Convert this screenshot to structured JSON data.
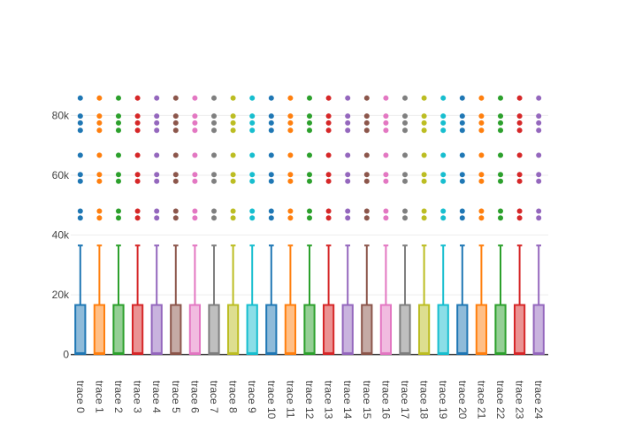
{
  "chart_data": {
    "type": "box",
    "title": "",
    "xlabel": "",
    "ylabel": "",
    "ylim": [
      -1000,
      89000
    ],
    "y_ticks": [
      0,
      20000,
      40000,
      60000,
      80000
    ],
    "y_tick_labels": [
      "0",
      "20k",
      "40k",
      "60k",
      "80k"
    ],
    "grid": true,
    "legend": "none",
    "categories": [
      "trace 0",
      "trace 1",
      "trace 2",
      "trace 3",
      "trace 4",
      "trace 5",
      "trace 6",
      "trace 7",
      "trace 8",
      "trace 9",
      "trace 10",
      "trace 11",
      "trace 12",
      "trace 13",
      "trace 14",
      "trace 15",
      "trace 16",
      "trace 17",
      "trace 18",
      "trace 19",
      "trace 20",
      "trace 21",
      "trace 22",
      "trace 23",
      "trace 24"
    ],
    "colors": [
      "#1f77b4",
      "#ff7f0e",
      "#2ca02c",
      "#d62728",
      "#9467bd",
      "#8c564b",
      "#e377c2",
      "#7f7f7f",
      "#bcbd22",
      "#17becf",
      "#1f77b4",
      "#ff7f0e",
      "#2ca02c",
      "#d62728",
      "#9467bd",
      "#8c564b",
      "#e377c2",
      "#7f7f7f",
      "#bcbd22",
      "#17becf",
      "#1f77b4",
      "#ff7f0e",
      "#2ca02c",
      "#d62728",
      "#9467bd"
    ],
    "box_stats": {
      "min": 0,
      "q1": 200,
      "median": 500,
      "q3": 16600,
      "upper_fence": 36500
    },
    "outliers": [
      45700,
      48000,
      58000,
      60200,
      66700,
      75000,
      77500,
      79800,
      85800
    ]
  }
}
